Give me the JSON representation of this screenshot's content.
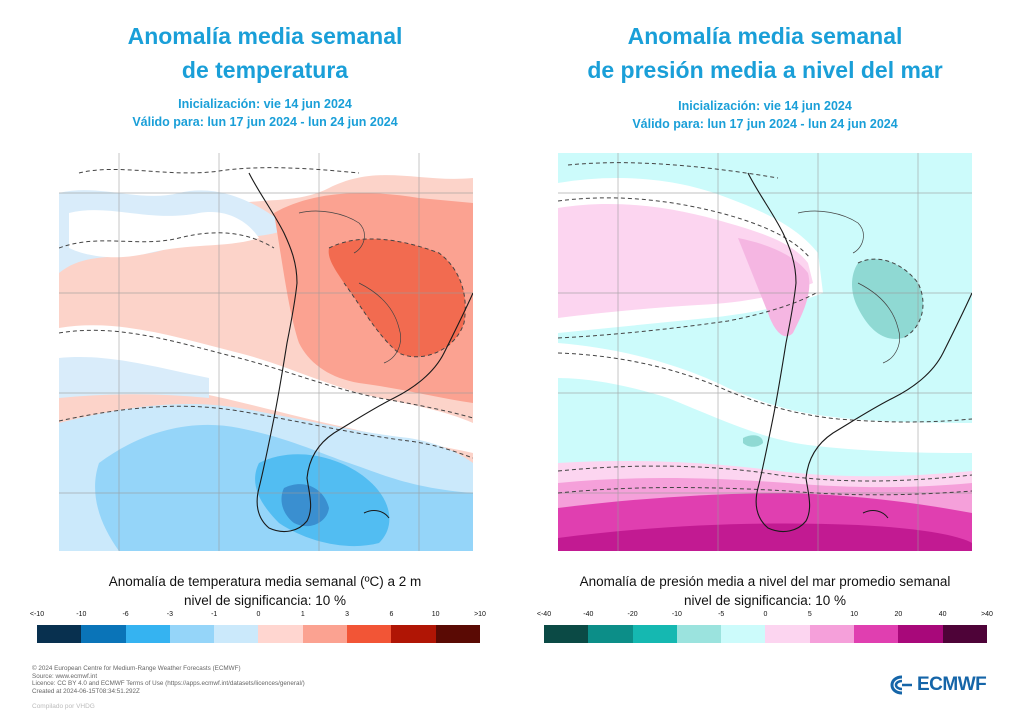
{
  "left_panel": {
    "title_line1": "Anomalía media semanal",
    "title_line2": "de temperatura",
    "init": "Inicialización: vie 14 jun 2024",
    "valid": "Válido para: lun 17 jun 2024 - lun 24 jun 2024",
    "caption_line1": "Anomalía de temperatura media semanal (ºC) a 2 m",
    "caption_line2": "nivel de significancia: 10 %",
    "scale_labels": [
      "<-10",
      "-10",
      "-6",
      "-3",
      "-1",
      "0",
      "1",
      "3",
      "6",
      "10",
      ">10"
    ],
    "scale_colors": [
      "#08304f",
      "#0a74b8",
      "#35b3f1",
      "#95d5f9",
      "#cbe9fb",
      "#ffd6d0",
      "#fba291",
      "#f25536",
      "#b01505",
      "#5a0a04"
    ]
  },
  "right_panel": {
    "title_line1": "Anomalía media semanal",
    "title_line2": "de presión media a nivel del mar",
    "init": "Inicialización: vie 14 jun 2024",
    "valid": "Válido para: lun 17 jun 2024 - lun 24 jun 2024",
    "caption_line1": "Anomalía de presión media a nivel del mar promedio semanal",
    "caption_line2": "nivel de significancia: 10 %",
    "scale_labels": [
      "<-40",
      "-40",
      "-20",
      "-10",
      "-5",
      "0",
      "5",
      "10",
      "20",
      "40",
      ">40"
    ],
    "scale_colors": [
      "#0b4a45",
      "#0c8e88",
      "#15b8b1",
      "#9be3de",
      "#ccfbfb",
      "#fcd5f0",
      "#f5a0da",
      "#e03fb0",
      "#a8087a",
      "#4e0338"
    ]
  },
  "footer": {
    "line1": "© 2024 European Centre for Medium-Range Weather Forecasts (ECMWF)",
    "line2": "Source: www.ecmwf.int",
    "line3": "Licence: CC BY 4.0 and ECMWF Terms of Use (https://apps.ecmwf.int/datasets/licences/general/)",
    "line4": "Created at 2024-06-15T08:34:51.292Z",
    "compiled": "Compilado por VHDG"
  },
  "logo": {
    "text": "ECMWF",
    "color": "#1565a8"
  }
}
